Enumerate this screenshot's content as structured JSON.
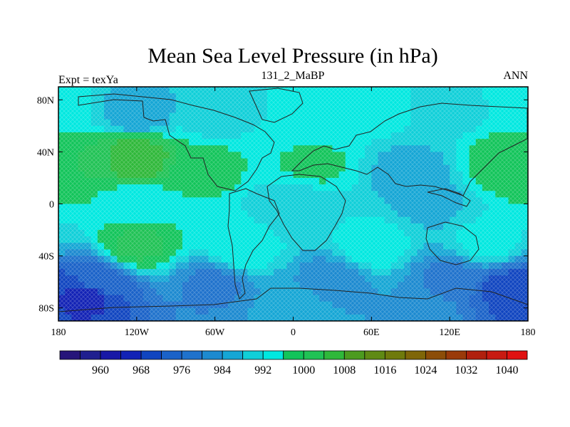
{
  "title": "Mean Sea Level Pressure (in hPa)",
  "left_string": "Expt = texYa",
  "center_string": "131_2_MaBP",
  "right_string": "ANN",
  "lat_labels": [
    "80N",
    "40N",
    "0",
    "40S",
    "80S"
  ],
  "lat_values": [
    80,
    40,
    0,
    -40,
    -80
  ],
  "lon_labels": [
    "180",
    "120W",
    "60W",
    "0",
    "60E",
    "120E",
    "180"
  ],
  "lon_values": [
    -180,
    -120,
    -60,
    0,
    60,
    120,
    180
  ],
  "colorbar": {
    "labels": [
      "960",
      "968",
      "976",
      "984",
      "992",
      "1000",
      "1008",
      "1016",
      "1024",
      "1032",
      "1040"
    ],
    "label_levels": [
      960,
      968,
      976,
      984,
      992,
      1000,
      1008,
      1016,
      1024,
      1032,
      1040
    ],
    "levels": [
      956,
      960,
      964,
      968,
      972,
      976,
      980,
      984,
      988,
      992,
      996,
      1000,
      1004,
      1008,
      1012,
      1016,
      1020,
      1024,
      1028,
      1032,
      1036,
      1040,
      1044
    ],
    "colors": [
      "#26157a",
      "#1f1f8f",
      "#1818a6",
      "#1222b5",
      "#1045c0",
      "#1a62c8",
      "#1f72cc",
      "#1c8ad0",
      "#15a6d5",
      "#10cfd8",
      "#00e8e0",
      "#12c45a",
      "#20c255",
      "#2fb83a",
      "#4c9b1f",
      "#5f8a14",
      "#6f7a0c",
      "#7f6608",
      "#8c4d08",
      "#9a3a0a",
      "#b0200e",
      "#c81a12",
      "#e01212"
    ]
  },
  "chart_data": {
    "type": "map-contour",
    "variable": "Mean Sea Level Pressure",
    "units": "hPa",
    "lon_range": [
      -180,
      180
    ],
    "lat_range": [
      -90,
      90
    ],
    "regions": [
      {
        "lon": -180,
        "lat": 80,
        "value": 997
      },
      {
        "lon": -120,
        "lat": 70,
        "value": 989
      },
      {
        "lon": -60,
        "lat": 65,
        "value": 995
      },
      {
        "lon": 0,
        "lat": 68,
        "value": 996
      },
      {
        "lon": 60,
        "lat": 70,
        "value": 997
      },
      {
        "lon": 120,
        "lat": 70,
        "value": 995
      },
      {
        "lon": -120,
        "lat": 35,
        "value": 1012
      },
      {
        "lon": -165,
        "lat": 30,
        "value": 1004
      },
      {
        "lon": -70,
        "lat": 30,
        "value": 1002
      },
      {
        "lon": 15,
        "lat": 30,
        "value": 1001
      },
      {
        "lon": 90,
        "lat": 25,
        "value": 990
      },
      {
        "lon": 165,
        "lat": 30,
        "value": 1004
      },
      {
        "lon": 0,
        "lat": 0,
        "value": 993
      },
      {
        "lon": 105,
        "lat": 0,
        "value": 991
      },
      {
        "lon": -120,
        "lat": 0,
        "value": 997
      },
      {
        "lon": -120,
        "lat": -32,
        "value": 1005
      },
      {
        "lon": -40,
        "lat": -35,
        "value": 999
      },
      {
        "lon": 60,
        "lat": -32,
        "value": 999
      },
      {
        "lon": 150,
        "lat": -30,
        "value": 998
      },
      {
        "lon": -150,
        "lat": -60,
        "value": 978
      },
      {
        "lon": -60,
        "lat": -62,
        "value": 983
      },
      {
        "lon": 30,
        "lat": -58,
        "value": 986
      },
      {
        "lon": 120,
        "lat": -58,
        "value": 983
      },
      {
        "lon": 165,
        "lat": -65,
        "value": 974
      },
      {
        "lon": -160,
        "lat": -70,
        "value": 970
      },
      {
        "lon": 0,
        "lat": -80,
        "value": 990
      },
      {
        "lon": 90,
        "lat": -82,
        "value": 988
      }
    ]
  }
}
